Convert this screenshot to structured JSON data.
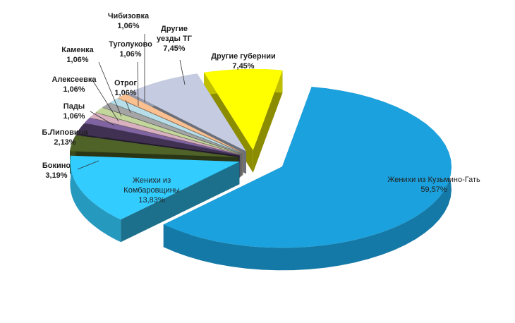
{
  "chart_data": {
    "type": "pie3d",
    "categories": [
      "Женихи из Кузьмино-Гать",
      "Женихи из Комбаровщины",
      "Бокино",
      "Б.Липовица",
      "Пады",
      "Алексеевка",
      "Каменка",
      "Отрог",
      "Туголуково",
      "Чибизовка",
      "Другие уезды ТГ",
      "Другие губернии"
    ],
    "values": [
      59.57,
      13.83,
      3.19,
      2.13,
      1.06,
      1.06,
      1.06,
      1.06,
      1.06,
      1.06,
      7.45,
      7.45
    ],
    "value_labels": [
      "59,57%",
      "13,83%",
      "3,19%",
      "2,13%",
      "1,06%",
      "1,06%",
      "1,06%",
      "1,06%",
      "1,06%",
      "1,06%",
      "7,45%",
      "7,45%"
    ],
    "colors": [
      "#1ba1dd",
      "#33ccff",
      "#4f6228",
      "#403152",
      "#8064a2",
      "#d9b0c0",
      "#c3d69b",
      "#a5a5a5",
      "#b7dee8",
      "#fac090",
      "#c5cbe0",
      "#ffff00"
    ]
  }
}
